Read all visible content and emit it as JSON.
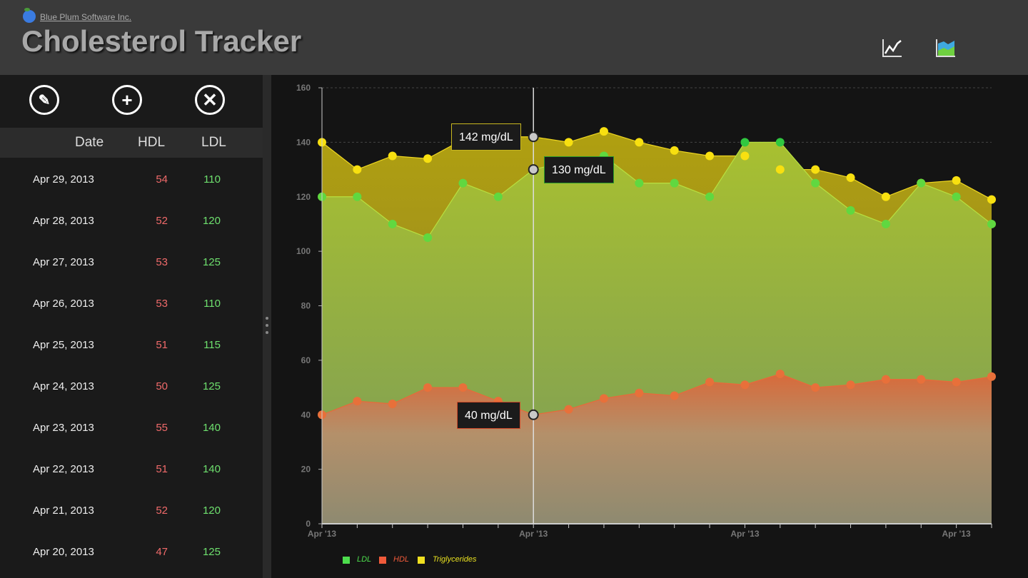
{
  "header": {
    "company": "Blue Plum Software Inc.",
    "title": "Cholesterol Tracker",
    "icons": [
      "line-chart-icon",
      "area-chart-icon"
    ]
  },
  "toolbar": {
    "icons": [
      "edit-icon",
      "add-icon",
      "delete-icon"
    ]
  },
  "table": {
    "headers": {
      "date": "Date",
      "hdl": "HDL",
      "ldl": "LDL"
    },
    "rows": [
      {
        "date": "Apr 29, 2013",
        "hdl": "54",
        "ldl": "110"
      },
      {
        "date": "Apr 28, 2013",
        "hdl": "52",
        "ldl": "120"
      },
      {
        "date": "Apr 27, 2013",
        "hdl": "53",
        "ldl": "125"
      },
      {
        "date": "Apr 26, 2013",
        "hdl": "53",
        "ldl": "110"
      },
      {
        "date": "Apr 25, 2013",
        "hdl": "51",
        "ldl": "115"
      },
      {
        "date": "Apr 24, 2013",
        "hdl": "50",
        "ldl": "125"
      },
      {
        "date": "Apr 23, 2013",
        "hdl": "55",
        "ldl": "140"
      },
      {
        "date": "Apr 22, 2013",
        "hdl": "51",
        "ldl": "140"
      },
      {
        "date": "Apr 21, 2013",
        "hdl": "52",
        "ldl": "120"
      },
      {
        "date": "Apr 20, 2013",
        "hdl": "47",
        "ldl": "125"
      }
    ]
  },
  "tooltips": {
    "trig": "142 mg/dL",
    "ldl": "130 mg/dL",
    "hdl": "40 mg/dL"
  },
  "colors": {
    "ldl": "#4ddd4d",
    "hdl": "#f05a3a",
    "trig": "#f0e020"
  },
  "chart_data": {
    "type": "area",
    "ylim": [
      0,
      160
    ],
    "yticks": [
      0,
      20,
      40,
      60,
      80,
      100,
      120,
      140,
      160
    ],
    "xtick_labels": [
      "Apr '13",
      "Apr '13",
      "Apr '13",
      "Apr '13"
    ],
    "legend": [
      "LDL",
      "HDL",
      "Triglycerides"
    ],
    "legend_position": "bottom-left",
    "series": [
      {
        "name": "Triglycerides",
        "values": [
          140,
          130,
          135,
          134,
          141,
          142,
          142,
          140,
          144,
          140,
          137,
          135,
          135,
          130,
          130,
          127,
          120,
          125,
          126,
          119
        ]
      },
      {
        "name": "LDL",
        "values": [
          120,
          120,
          110,
          105,
          125,
          120,
          130,
          133,
          135,
          125,
          125,
          120,
          140,
          140,
          125,
          115,
          110,
          125,
          120,
          110
        ]
      },
      {
        "name": "HDL",
        "values": [
          40,
          45,
          44,
          50,
          50,
          45,
          40,
          42,
          46,
          48,
          47,
          52,
          51,
          55,
          50,
          51,
          53,
          53,
          52,
          54
        ]
      }
    ],
    "cursor_index": 6
  }
}
